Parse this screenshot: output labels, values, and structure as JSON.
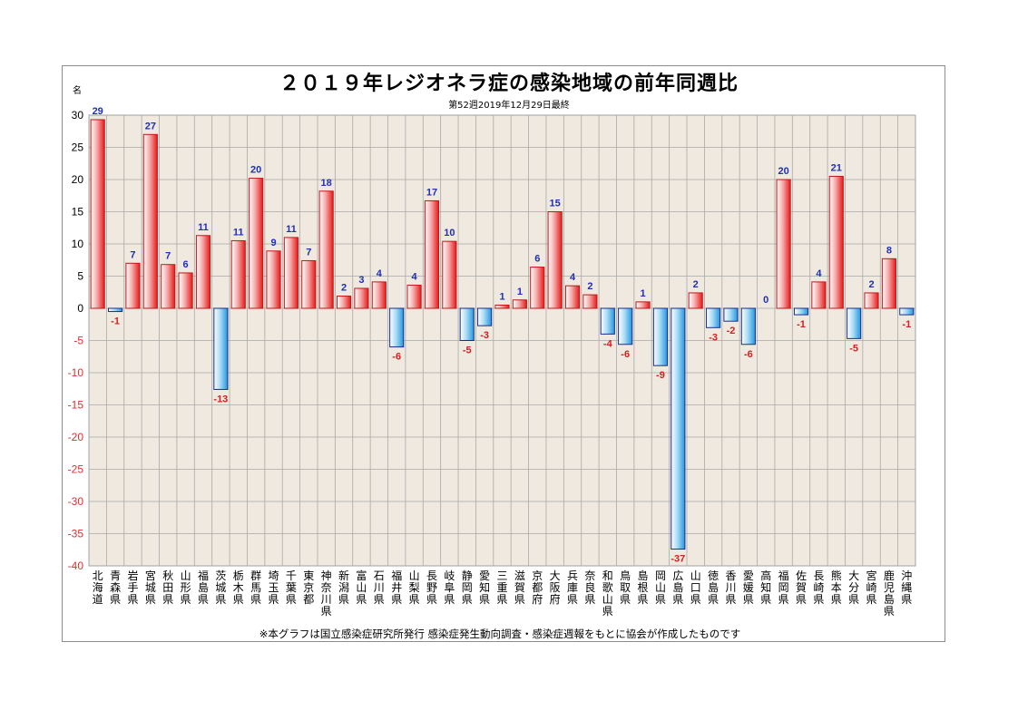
{
  "chart_data": {
    "type": "bar",
    "title": "２０１９年レジオネラ症の感染地域の前年同週比",
    "subtitle": "第52週2019年12月29日最終",
    "ylabel": "名",
    "ylim": [
      -40,
      30
    ],
    "yticks": [
      30,
      25,
      20,
      15,
      10,
      5,
      0,
      -5,
      -10,
      -15,
      -20,
      -25,
      -30,
      -35,
      -40
    ],
    "grid": true,
    "categories": [
      "北海道",
      "青森県",
      "岩手県",
      "宮城県",
      "秋田県",
      "山形県",
      "福島県",
      "茨城県",
      "栃木県",
      "群馬県",
      "埼玉県",
      "千葉県",
      "東京都",
      "神奈川県",
      "新潟県",
      "富山県",
      "石川県",
      "福井県",
      "山梨県",
      "長野県",
      "岐阜県",
      "静岡県",
      "愛知県",
      "三重県",
      "滋賀県",
      "京都府",
      "大阪府",
      "兵庫県",
      "奈良県",
      "和歌山県",
      "鳥取県",
      "島根県",
      "岡山県",
      "広島県",
      "山口県",
      "徳島県",
      "香川県",
      "愛媛県",
      "高知県",
      "福岡県",
      "佐賀県",
      "長崎県",
      "熊本県",
      "大分県",
      "宮崎県",
      "鹿児島県",
      "沖縄県"
    ],
    "values": [
      29.3,
      -0.5,
      7,
      27,
      6.8,
      5.5,
      11.3,
      -12.6,
      10.5,
      20.2,
      8.9,
      11,
      7.4,
      18.2,
      1.9,
      3.1,
      4.1,
      -6,
      3.6,
      16.7,
      10.4,
      -5,
      -2.7,
      0.5,
      1.3,
      6.4,
      15,
      3.5,
      2.1,
      -4,
      -5.6,
      1,
      -8.9,
      -37.4,
      2.4,
      -3,
      -2,
      -5.6,
      0,
      20,
      -1,
      4.1,
      20.5,
      -4.7,
      2.4,
      7.7,
      -1
    ],
    "data_labels": [
      "29",
      "-1",
      "7",
      "27",
      "7",
      "6",
      "11",
      "-13",
      "11",
      "20",
      "9",
      "11",
      "7",
      "18",
      "2",
      "3",
      "4",
      "-6",
      "4",
      "17",
      "10",
      "-5",
      "-3",
      "1",
      "1",
      "6",
      "15",
      "4",
      "2",
      "-4",
      "-6",
      "1",
      "-9",
      "-37",
      "2",
      "-3",
      "-2",
      "-6",
      "0",
      "20",
      "-1",
      "4",
      "21",
      "-5",
      "2",
      "8",
      "-1"
    ],
    "colors": {
      "positive": "#ee2222",
      "negative": "#2c9be0",
      "positive_border": "#c01818",
      "negative_border": "#1a2d8c",
      "plot_bg": "#efe9df",
      "grid": "#a9a9a9"
    }
  },
  "footnote": "※本グラフは国立感染症研究所発行 感染症発生動向調査・感染症週報をもとに協会が作成したものです"
}
